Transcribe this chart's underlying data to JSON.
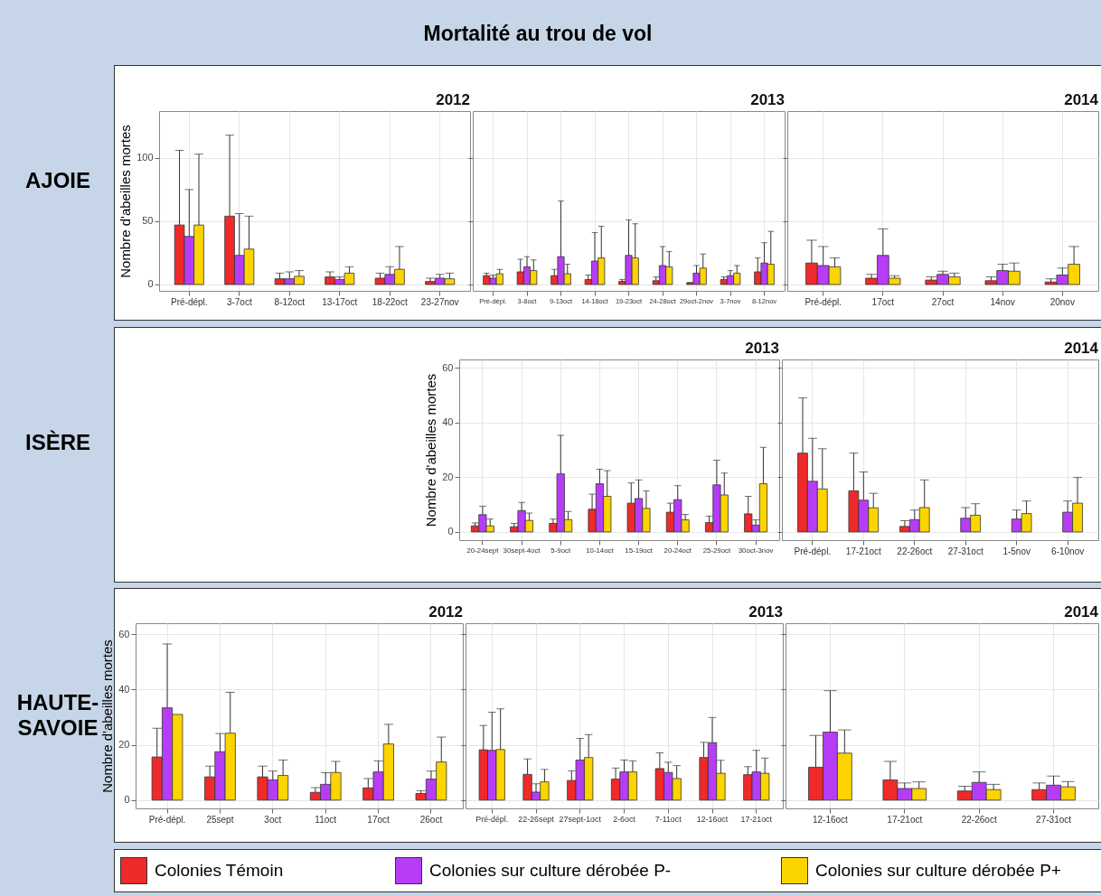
{
  "chart_data": [
    {
      "type": "bar",
      "title": "2012",
      "ylabel": "Nombre d'abeilles mortes",
      "annotations": [
        "Mortalité au trou de vol",
        "AJOIE"
      ],
      "categories": [
        "Pré-dépl.",
        "3-7oct",
        "8-12oct",
        "13-17oct",
        "18-22oct",
        "23-27nov"
      ],
      "ylim": [
        -5,
        137
      ],
      "yticks": [
        0,
        50,
        100
      ],
      "grid": true,
      "legend": "bottom",
      "series": [
        {
          "name": "Colonies Témoin",
          "color": "#ee2a2a",
          "values": [
            47,
            54,
            4.5,
            6,
            5,
            2.4
          ],
          "errors": [
            [
              47,
              106
            ],
            [
              54,
              118
            ],
            [
              4.5,
              9
            ],
            [
              6,
              10
            ],
            [
              5,
              9
            ],
            [
              2.4,
              5
            ]
          ]
        },
        {
          "name": "Colonies sur culture dérobée P-",
          "color": "#b63df5",
          "values": [
            38,
            23,
            4.5,
            4,
            8,
            5
          ],
          "errors": [
            [
              38,
              75
            ],
            [
              23,
              56
            ],
            [
              4.5,
              10
            ],
            [
              4,
              6
            ],
            [
              8,
              14
            ],
            [
              5,
              8
            ]
          ]
        },
        {
          "name": "Colonies sur culture dérobée P+",
          "color": "#fcd400",
          "values": [
            47,
            28,
            6.5,
            9,
            12,
            4.5
          ],
          "errors": [
            [
              47,
              103
            ],
            [
              28,
              54
            ],
            [
              6.5,
              11
            ],
            [
              9,
              14
            ],
            [
              12,
              30
            ],
            [
              4.5,
              9
            ]
          ]
        }
      ]
    },
    {
      "type": "bar",
      "title": "2013",
      "categories": [
        "Pré-dépl.",
        "3-8oct",
        "9-13oct",
        "14-18oct",
        "19-23oct",
        "24-28oct",
        "29oct-2nov",
        "3-7nov",
        "8-12nov"
      ],
      "ylim": [
        -5,
        137
      ],
      "yticks": [
        0,
        50,
        100
      ],
      "grid": true,
      "tick_labels": "x",
      "series": [
        {
          "color": "#ee2a2a",
          "values": [
            7,
            10,
            7,
            4,
            2.5,
            3,
            1.3,
            4,
            10
          ],
          "errors": [
            [
              7,
              9
            ],
            [
              10,
              20
            ],
            [
              7,
              12
            ],
            [
              4,
              7.5
            ],
            [
              2.5,
              4
            ],
            [
              3,
              6
            ],
            [
              1.3,
              1.6
            ],
            [
              4,
              6
            ],
            [
              10,
              21
            ]
          ]
        },
        {
          "color": "#b63df5",
          "values": [
            5,
            14,
            22,
            18.5,
            23,
            15,
            9,
            7,
            17
          ],
          "errors": [
            [
              5,
              7.5
            ],
            [
              14,
              22
            ],
            [
              22,
              66
            ],
            [
              18.5,
              41
            ],
            [
              23,
              51
            ],
            [
              15,
              30
            ],
            [
              9,
              15
            ],
            [
              7,
              11
            ],
            [
              17,
              33
            ]
          ]
        },
        {
          "color": "#fcd400",
          "values": [
            8.5,
            11,
            8.5,
            21,
            21,
            14,
            13,
            9,
            16
          ],
          "errors": [
            [
              8.5,
              12
            ],
            [
              11,
              19.5
            ],
            [
              8.5,
              16
            ],
            [
              21,
              46
            ],
            [
              21,
              48
            ],
            [
              14,
              26
            ],
            [
              13,
              24
            ],
            [
              9,
              15
            ],
            [
              16,
              42
            ]
          ]
        }
      ]
    },
    {
      "type": "bar",
      "title": "2014",
      "categories": [
        "Pré-dépl.",
        "17oct",
        "27oct",
        "14nov",
        "20nov"
      ],
      "ylim": [
        -5,
        137
      ],
      "yticks": [
        0,
        50,
        100
      ],
      "grid": true,
      "tick_labels": "x",
      "series": [
        {
          "color": "#ee2a2a",
          "values": [
            17,
            5,
            3.5,
            3,
            2
          ],
          "errors": [
            [
              17,
              35
            ],
            [
              5,
              8
            ],
            [
              3.5,
              6
            ],
            [
              3,
              6
            ],
            [
              2,
              4.5
            ]
          ]
        },
        {
          "color": "#b63df5",
          "values": [
            15,
            23,
            8,
            11,
            7.5
          ],
          "errors": [
            [
              15,
              30
            ],
            [
              23,
              44
            ],
            [
              8,
              10.5
            ],
            [
              11,
              16
            ],
            [
              7.5,
              13
            ]
          ]
        },
        {
          "color": "#fcd400",
          "values": [
            14,
            5,
            6,
            10.5,
            16
          ],
          "errors": [
            [
              14,
              21
            ],
            [
              5,
              7
            ],
            [
              6,
              9
            ],
            [
              10.5,
              17
            ],
            [
              16,
              30
            ]
          ]
        }
      ]
    },
    {
      "type": "bar",
      "title": "2013",
      "ylabel": "Nombre d'abeilles mortes",
      "annotations": [
        "ISÈRE"
      ],
      "categories": [
        "20-24sept",
        "30sept-4oct",
        "5-9oct",
        "10-14oct",
        "15-19oct",
        "20-24oct",
        "25-29oct",
        "30oct-3nov"
      ],
      "ylim": [
        -3,
        63
      ],
      "yticks": [
        0,
        20,
        40,
        60
      ],
      "grid": true,
      "series": [
        {
          "color": "#ee2a2a",
          "values": [
            2.2,
            1.9,
            3.1,
            8.3,
            10.5,
            7.2,
            3.4,
            6.6
          ],
          "errors": [
            [
              2.2,
              3.3
            ],
            [
              1.9,
              3.1
            ],
            [
              3.1,
              4.7
            ],
            [
              8.3,
              13.8
            ],
            [
              10.5,
              17.9
            ],
            [
              7.2,
              10.5
            ],
            [
              3.4,
              5.8
            ],
            [
              6.6,
              13
            ]
          ]
        },
        {
          "color": "#b63df5",
          "values": [
            6.3,
            7.8,
            21.2,
            17.6,
            12.2,
            11.8,
            17.2,
            2.5
          ],
          "errors": [
            [
              6.3,
              9.4
            ],
            [
              7.8,
              10.8
            ],
            [
              21.2,
              35.3
            ],
            [
              17.6,
              22.9
            ],
            [
              12.2,
              19
            ],
            [
              11.8,
              16.9
            ],
            [
              17.2,
              26.2
            ],
            [
              2.5,
              4.4
            ]
          ]
        },
        {
          "color": "#fcd400",
          "values": [
            2.2,
            4.2,
            4.5,
            13,
            8.6,
            4.4,
            13.5,
            17.6
          ],
          "errors": [
            [
              2.2,
              4.7
            ],
            [
              4.2,
              6.9
            ],
            [
              4.5,
              7.5
            ],
            [
              13,
              22.4
            ],
            [
              8.6,
              15
            ],
            [
              4.4,
              6.4
            ],
            [
              13.5,
              21.5
            ],
            [
              17.6,
              30.9
            ]
          ]
        }
      ]
    },
    {
      "type": "bar",
      "title": "2014",
      "categories": [
        "Pré-dépl.",
        "17-21oct",
        "22-26oct",
        "27-31oct",
        "1-5nov",
        "6-10nov"
      ],
      "ylim": [
        -3,
        63
      ],
      "yticks": [
        0,
        20,
        40,
        60
      ],
      "grid": true,
      "tick_labels": "x",
      "series": [
        {
          "color": "#ee2a2a",
          "values": [
            28.8,
            15,
            2,
            null,
            null,
            null
          ],
          "errors": [
            [
              28.8,
              49
            ],
            [
              15,
              28.8
            ],
            [
              2,
              4.1
            ],
            null,
            null,
            null
          ]
        },
        {
          "color": "#b63df5",
          "values": [
            18.5,
            11.6,
            4.5,
            5,
            4.7,
            7.2
          ],
          "errors": [
            [
              18.5,
              34.2
            ],
            [
              11.6,
              21.9
            ],
            [
              4.5,
              8
            ],
            [
              5,
              8.9
            ],
            [
              4.7,
              8
            ],
            [
              7.2,
              11.3
            ]
          ]
        },
        {
          "color": "#fcd400",
          "values": [
            15.7,
            8.8,
            8.9,
            6.1,
            6.7,
            10.5
          ],
          "errors": [
            [
              15.7,
              30.4
            ],
            [
              8.8,
              14.1
            ],
            [
              8.9,
              19
            ],
            [
              6.1,
              10.3
            ],
            [
              6.7,
              11.3
            ],
            [
              10.5,
              19.9
            ]
          ]
        }
      ]
    },
    {
      "type": "bar",
      "title": "2012",
      "ylabel": "Nombre d'abeilles mortes",
      "annotations": [
        "HAUTE-SAVOIE"
      ],
      "categories": [
        "Pré-dépl.",
        "25sept",
        "3oct",
        "11oct",
        "17oct",
        "26oct"
      ],
      "ylim": [
        -3,
        64
      ],
      "yticks": [
        0,
        20,
        40,
        60
      ],
      "grid": true,
      "series": [
        {
          "color": "#ee2a2a",
          "values": [
            15.6,
            8.4,
            8.4,
            2.8,
            4.4,
            2.4
          ],
          "errors": [
            [
              15.6,
              26
            ],
            [
              8.4,
              12.3
            ],
            [
              8.4,
              12.3
            ],
            [
              2.8,
              4.5
            ],
            [
              4.4,
              7.8
            ],
            [
              2.4,
              3.4
            ]
          ]
        },
        {
          "color": "#b63df5",
          "values": [
            33.4,
            17.5,
            7.3,
            5.7,
            10.2,
            7.6
          ],
          "errors": [
            [
              33.4,
              56.5
            ],
            [
              17.5,
              24.1
            ],
            [
              7.3,
              10.5
            ],
            [
              5.7,
              9.9
            ],
            [
              10.2,
              14.2
            ],
            [
              7.6,
              10.5
            ]
          ]
        },
        {
          "color": "#fcd400",
          "values": [
            31,
            24.2,
            8.9,
            10,
            20.3,
            13.8
          ],
          "errors": [
            null,
            [
              24.2,
              39
            ],
            [
              8.9,
              14.5
            ],
            [
              10,
              14
            ],
            [
              20.3,
              27.4
            ],
            [
              13.8,
              22.8
            ]
          ]
        }
      ]
    },
    {
      "type": "bar",
      "title": "2013",
      "categories": [
        "Pré-dépl.",
        "22-26sept",
        "27sept-1oct",
        "2-6oct",
        "7-11oct",
        "12-16oct",
        "17-21oct"
      ],
      "ylim": [
        -3,
        64
      ],
      "yticks": [
        0,
        20,
        40,
        60
      ],
      "grid": true,
      "tick_labels": "x",
      "series": [
        {
          "color": "#ee2a2a",
          "values": [
            18.2,
            9.3,
            7.1,
            7.6,
            11.4,
            15.4,
            9.2
          ],
          "errors": [
            [
              18.2,
              27
            ],
            [
              9.3,
              14.9
            ],
            [
              7.1,
              10.6
            ],
            [
              7.6,
              11.6
            ],
            [
              11.4,
              17.1
            ],
            [
              15.4,
              20.9
            ],
            [
              9.2,
              12.1
            ]
          ]
        },
        {
          "color": "#b63df5",
          "values": [
            18,
            2.9,
            14.5,
            10.2,
            10,
            20.8,
            10.2
          ],
          "errors": [
            [
              18,
              31.8
            ],
            [
              2.9,
              5.9
            ],
            [
              14.5,
              22.3
            ],
            [
              10.2,
              14.5
            ],
            [
              10,
              13.7
            ],
            [
              20.8,
              29.9
            ],
            [
              10.2,
              18
            ]
          ]
        },
        {
          "color": "#fcd400",
          "values": [
            18.3,
            6.6,
            15.4,
            10.2,
            7.8,
            9.7,
            9.7
          ],
          "errors": [
            [
              18.3,
              33
            ],
            [
              6.6,
              11.1
            ],
            [
              15.4,
              23.7
            ],
            [
              10.2,
              14.2
            ],
            [
              7.8,
              12.5
            ],
            [
              9.7,
              14.4
            ],
            [
              9.7,
              15.2
            ]
          ]
        }
      ]
    },
    {
      "type": "bar",
      "title": "2014",
      "categories": [
        "12-16oct",
        "17-21oct",
        "22-26oct",
        "27-31oct"
      ],
      "ylim": [
        -3,
        64
      ],
      "yticks": [
        0,
        20,
        40,
        60
      ],
      "grid": true,
      "tick_labels": "x",
      "series": [
        {
          "color": "#ee2a2a",
          "values": [
            11.9,
            7.3,
            3.3,
            3.8
          ],
          "errors": [
            [
              11.9,
              23.4
            ],
            [
              7.3,
              14
            ],
            [
              3.3,
              5
            ],
            [
              3.8,
              6.2
            ]
          ]
        },
        {
          "color": "#b63df5",
          "values": [
            24.6,
            4.2,
            6.4,
            5.4
          ],
          "errors": [
            [
              24.6,
              39.6
            ],
            [
              4.2,
              6.2
            ],
            [
              6.4,
              10.2
            ],
            [
              5.4,
              8.7
            ]
          ]
        },
        {
          "color": "#fcd400",
          "values": [
            17,
            4.2,
            3.8,
            4.8
          ],
          "errors": [
            [
              17,
              25.4
            ],
            [
              4.2,
              6.6
            ],
            [
              3.8,
              5.7
            ],
            [
              4.8,
              6.7
            ]
          ]
        }
      ]
    }
  ]
}
